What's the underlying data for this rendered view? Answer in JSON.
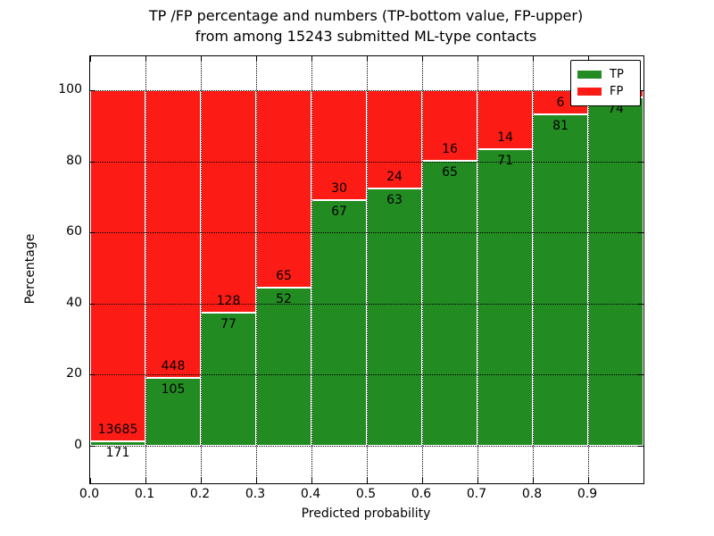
{
  "title": {
    "line1": "TP /FP percentage and numbers (TP-bottom value, FP-upper)",
    "line2": "from among 15243 submitted ML-type contacts"
  },
  "chart_data": {
    "type": "bar",
    "stacked": true,
    "orientation": "vertical",
    "title": "TP /FP percentage and numbers (TP-bottom value, FP-upper) from among 15243 submitted ML-type contacts",
    "xlabel": "Predicted probability",
    "ylabel": "Percentage",
    "total_contacts": 15243,
    "xlim": [
      0.0,
      1.0
    ],
    "ylim": [
      -10.5,
      109.5
    ],
    "bin_width": 0.1,
    "x_tick_labels": [
      "0.0",
      "0.1",
      "0.2",
      "0.3",
      "0.4",
      "0.5",
      "0.6",
      "0.7",
      "0.8",
      "0.9"
    ],
    "y_tick_labels": [
      "0",
      "20",
      "40",
      "60",
      "80",
      "100"
    ],
    "y_tick_values": [
      0,
      20,
      40,
      60,
      80,
      100
    ],
    "grid": {
      "style": "dotted",
      "color": "#000000",
      "drawn_above_bars": true
    },
    "colors": {
      "tp": "#228b22",
      "fp": "#fd1c15",
      "edge": "#ffffff"
    },
    "legend": {
      "position": "upper right",
      "items": [
        {
          "label": "TP",
          "color_key": "tp"
        },
        {
          "label": "FP",
          "color_key": "fp"
        }
      ]
    },
    "bars": [
      {
        "bin_start": 0.0,
        "tp_count": "171",
        "fp_count": "13685",
        "tp_pct": 1.23
      },
      {
        "bin_start": 0.1,
        "tp_count": "105",
        "fp_count": "448",
        "tp_pct": 18.99
      },
      {
        "bin_start": 0.2,
        "tp_count": "77",
        "fp_count": "128",
        "tp_pct": 37.56
      },
      {
        "bin_start": 0.3,
        "tp_count": "52",
        "fp_count": "65",
        "tp_pct": 44.44
      },
      {
        "bin_start": 0.4,
        "tp_count": "67",
        "fp_count": "30",
        "tp_pct": 69.07
      },
      {
        "bin_start": 0.5,
        "tp_count": "63",
        "fp_count": "24",
        "tp_pct": 72.41
      },
      {
        "bin_start": 0.6,
        "tp_count": "65",
        "fp_count": "16",
        "tp_pct": 80.25
      },
      {
        "bin_start": 0.7,
        "tp_count": "71",
        "fp_count": "14",
        "tp_pct": 83.53
      },
      {
        "bin_start": 0.8,
        "tp_count": "81",
        "fp_count": "6",
        "tp_pct": 93.1
      },
      {
        "bin_start": 0.9,
        "tp_count": "74",
        "fp_count": "",
        "tp_pct": 97.9
      }
    ]
  }
}
